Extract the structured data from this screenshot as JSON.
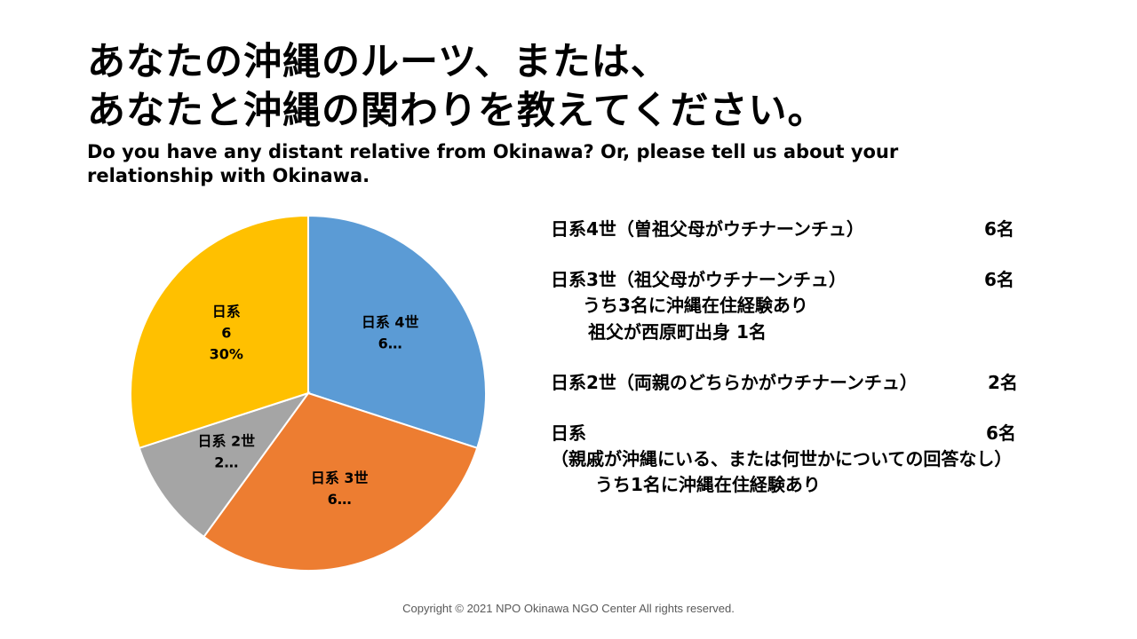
{
  "slide": {
    "title_line1": "あなたの沖縄のルーツ、または、",
    "title_line2": "あなたと沖縄の関わりを教えてください。",
    "subtitle": "Do you have any distant relative from Okinawa? Or, please tell us about your relationship with Okinawa.",
    "footer": "Copyright © 2021 NPO Okinawa NGO Center All rights reserved."
  },
  "chart_data": {
    "type": "pie",
    "categories": [
      "日系 4世",
      "日系 3世",
      "日系 2世",
      "日系"
    ],
    "values": [
      6,
      6,
      2,
      6
    ],
    "colors": [
      "#5B9BD5",
      "#ED7D31",
      "#A5A5A5",
      "#FFC000"
    ],
    "data_labels": [
      [
        "日系 4世",
        "6…"
      ],
      [
        "日系 3世",
        "6…"
      ],
      [
        "日系 2世",
        "2…"
      ],
      [
        "日系",
        "6",
        "30%"
      ]
    ]
  },
  "legend": {
    "g4": {
      "label": "日系4世（曽祖父母がウチナーンチュ）",
      "count": "6名"
    },
    "g3": {
      "label": "日系3世（祖父母がウチナーンチュ）",
      "count": "6名",
      "note1": "うち3名に沖縄在住経験あり",
      "note2": "祖父が西原町出身 1名"
    },
    "g2": {
      "label": "日系2世（両親のどちらかがウチナーンチュ）",
      "count": "2名"
    },
    "other": {
      "label": "日系",
      "count": "6名",
      "note1": "（親戚が沖縄にいる、または何世かについての回答なし）",
      "note2": "うち1名に沖縄在住経験あり"
    }
  }
}
